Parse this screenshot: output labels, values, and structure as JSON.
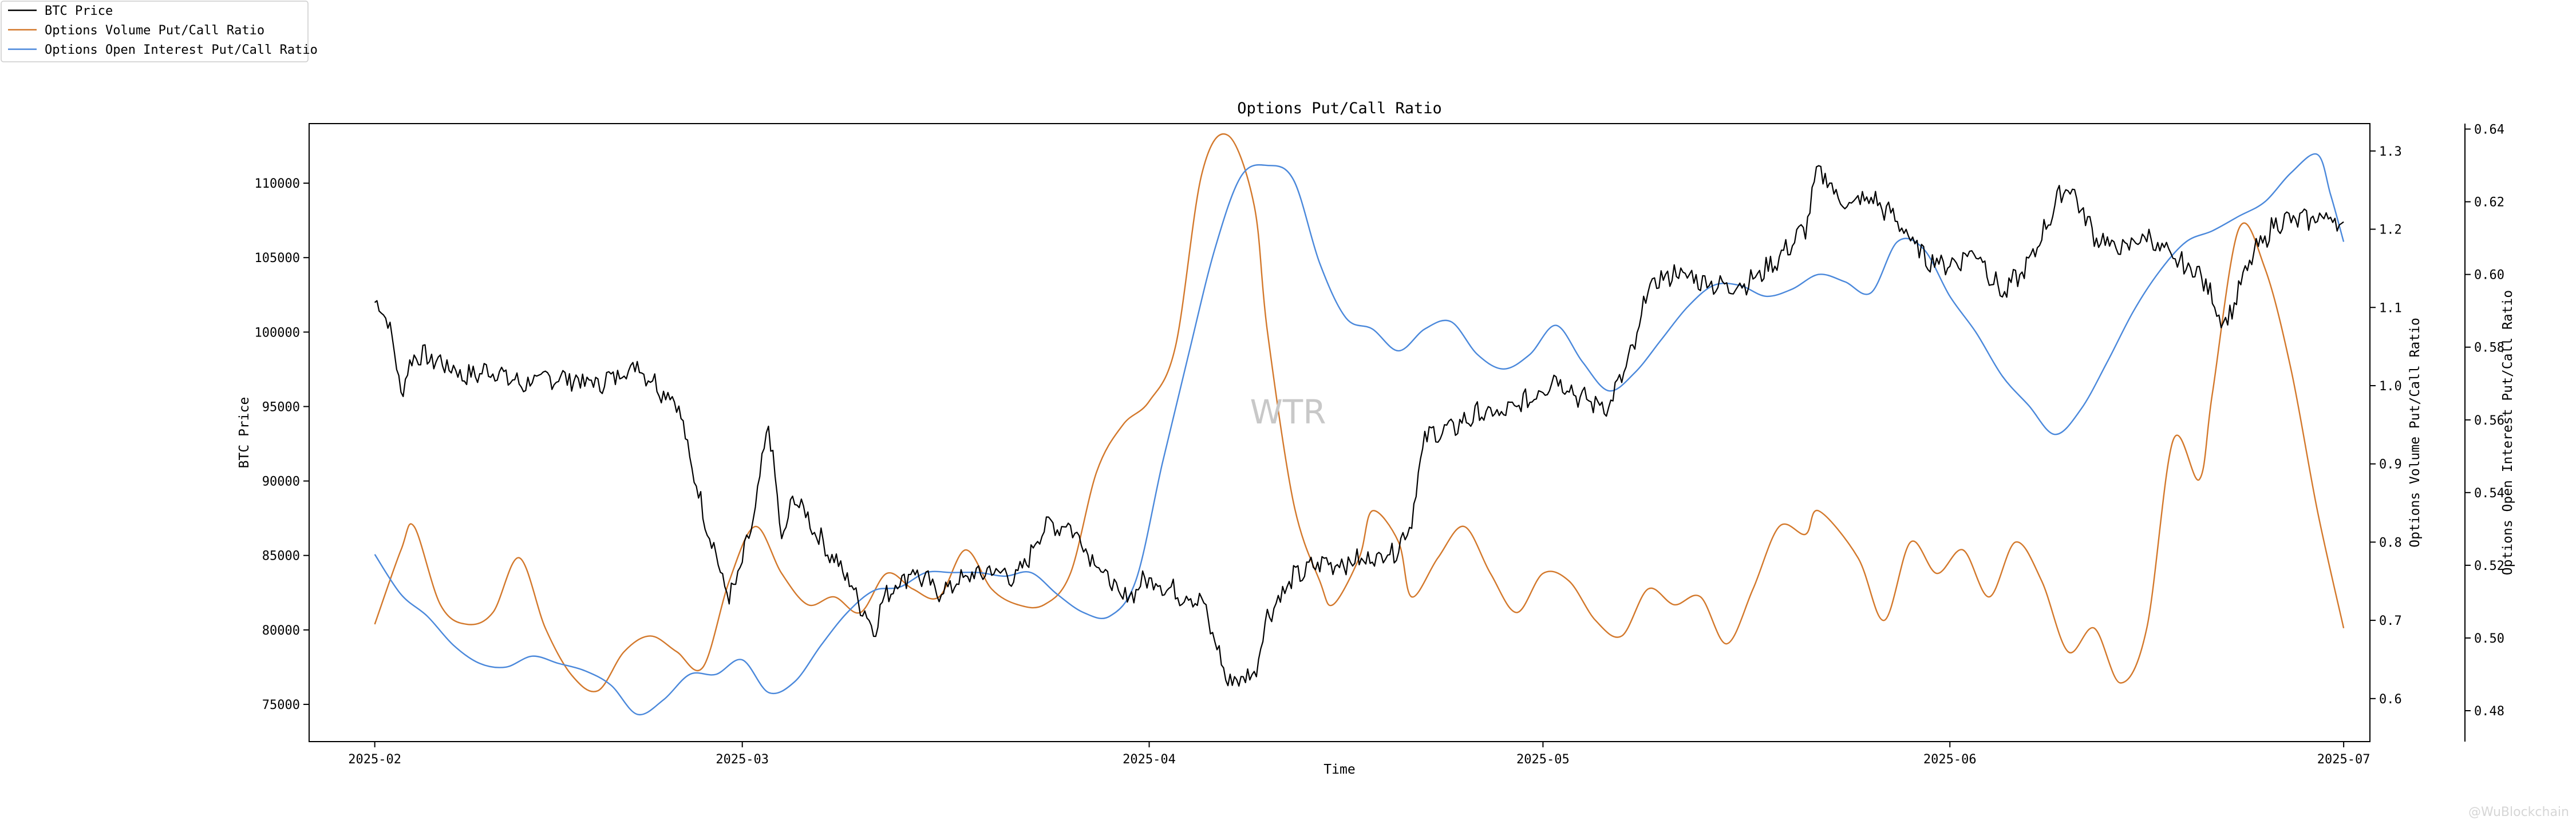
{
  "chart_data": {
    "type": "line",
    "title": "Options Put/Call Ratio",
    "xlabel": "Time",
    "x_ticks": [
      "2025-02",
      "2025-03",
      "2025-04",
      "2025-05",
      "2025-06",
      "2025-07"
    ],
    "xlim": [
      "2025-01-27",
      "2025-07-03"
    ],
    "axes": {
      "left": {
        "label": "BTC Price",
        "ylim": [
          72500,
          114000
        ],
        "ticks": [
          75000,
          80000,
          85000,
          90000,
          95000,
          100000,
          105000,
          110000
        ]
      },
      "right1": {
        "label": "Options Volume Put/Call Ratio",
        "ylim": [
          0.545,
          1.335
        ],
        "ticks": [
          "0.6",
          "0.7",
          "0.8",
          "0.9",
          "1.0",
          "1.1",
          "1.2",
          "1.3"
        ]
      },
      "right2": {
        "label": "Options Open Interest Put/Call Ratio",
        "ylim": [
          0.4715,
          0.6415
        ],
        "ticks": [
          "0.48",
          "0.50",
          "0.52",
          "0.54",
          "0.56",
          "0.58",
          "0.60",
          "0.62",
          "0.64"
        ]
      }
    },
    "legend_position": "top-left",
    "series": [
      {
        "name": "BTC Price",
        "axis": "left",
        "color": "#000000",
        "points": [
          [
            "2025-02-01",
            102000
          ],
          [
            "2025-02-02",
            101000
          ],
          [
            "2025-02-03",
            96000
          ],
          [
            "2025-02-04",
            98500
          ],
          [
            "2025-02-06",
            98000
          ],
          [
            "2025-02-08",
            97000
          ],
          [
            "2025-02-10",
            97500
          ],
          [
            "2025-02-12",
            96500
          ],
          [
            "2025-02-15",
            97000
          ],
          [
            "2025-02-18",
            96500
          ],
          [
            "2025-02-21",
            97800
          ],
          [
            "2025-02-23",
            96000
          ],
          [
            "2025-02-24",
            95500
          ],
          [
            "2025-02-25",
            91500
          ],
          [
            "2025-02-26",
            88000
          ],
          [
            "2025-02-28",
            82000
          ],
          [
            "2025-03-01",
            84500
          ],
          [
            "2025-03-02",
            88000
          ],
          [
            "2025-03-03",
            94000
          ],
          [
            "2025-03-04",
            86000
          ],
          [
            "2025-03-05",
            89000
          ],
          [
            "2025-03-07",
            86000
          ],
          [
            "2025-03-09",
            83500
          ],
          [
            "2025-03-11",
            80000
          ],
          [
            "2025-03-12",
            82500
          ],
          [
            "2025-03-14",
            84000
          ],
          [
            "2025-03-16",
            82500
          ],
          [
            "2025-03-18",
            83500
          ],
          [
            "2025-03-20",
            84000
          ],
          [
            "2025-03-22",
            83500
          ],
          [
            "2025-03-24",
            87000
          ],
          [
            "2025-03-26",
            87000
          ],
          [
            "2025-03-28",
            84500
          ],
          [
            "2025-03-30",
            82000
          ],
          [
            "2025-04-01",
            83500
          ],
          [
            "2025-04-03",
            82500
          ],
          [
            "2025-04-05",
            82000
          ],
          [
            "2025-04-07",
            76500
          ],
          [
            "2025-04-09",
            77000
          ],
          [
            "2025-04-10",
            81000
          ],
          [
            "2025-04-12",
            83500
          ],
          [
            "2025-04-14",
            84500
          ],
          [
            "2025-04-16",
            84500
          ],
          [
            "2025-04-18",
            84800
          ],
          [
            "2025-04-20",
            85500
          ],
          [
            "2025-04-21",
            87500
          ],
          [
            "2025-04-22",
            93000
          ],
          [
            "2025-04-24",
            93500
          ],
          [
            "2025-04-26",
            94500
          ],
          [
            "2025-04-28",
            94500
          ],
          [
            "2025-04-30",
            95500
          ],
          [
            "2025-05-02",
            97000
          ],
          [
            "2025-05-04",
            95500
          ],
          [
            "2025-05-06",
            95000
          ],
          [
            "2025-05-08",
            99000
          ],
          [
            "2025-05-09",
            103000
          ],
          [
            "2025-05-11",
            104000
          ],
          [
            "2025-05-13",
            103500
          ],
          [
            "2025-05-15",
            103000
          ],
          [
            "2025-05-17",
            103500
          ],
          [
            "2025-05-19",
            105000
          ],
          [
            "2025-05-21",
            107000
          ],
          [
            "2025-05-22",
            111000
          ],
          [
            "2025-05-24",
            108500
          ],
          [
            "2025-05-26",
            109000
          ],
          [
            "2025-05-28",
            107500
          ],
          [
            "2025-05-30",
            105000
          ],
          [
            "2025-06-01",
            104500
          ],
          [
            "2025-06-03",
            105500
          ],
          [
            "2025-06-05",
            102500
          ],
          [
            "2025-06-07",
            104500
          ],
          [
            "2025-06-09",
            108500
          ],
          [
            "2025-06-10",
            110000
          ],
          [
            "2025-06-12",
            106500
          ],
          [
            "2025-06-14",
            105500
          ],
          [
            "2025-06-16",
            106500
          ],
          [
            "2025-06-18",
            104800
          ],
          [
            "2025-06-20",
            104000
          ],
          [
            "2025-06-22",
            100500
          ],
          [
            "2025-06-24",
            105000
          ],
          [
            "2025-06-26",
            107500
          ],
          [
            "2025-06-28",
            107500
          ],
          [
            "2025-06-30",
            107800
          ],
          [
            "2025-07-01",
            107000
          ]
        ]
      },
      {
        "name": "Options Volume Put/Call Ratio",
        "axis": "right1",
        "color": "#d3782b",
        "points": [
          [
            "2025-02-01",
            0.695
          ],
          [
            "2025-02-03",
            0.79
          ],
          [
            "2025-02-04",
            0.82
          ],
          [
            "2025-02-06",
            0.72
          ],
          [
            "2025-02-08",
            0.695
          ],
          [
            "2025-02-10",
            0.71
          ],
          [
            "2025-02-12",
            0.78
          ],
          [
            "2025-02-14",
            0.69
          ],
          [
            "2025-02-16",
            0.63
          ],
          [
            "2025-02-18",
            0.61
          ],
          [
            "2025-02-20",
            0.66
          ],
          [
            "2025-02-22",
            0.68
          ],
          [
            "2025-02-24",
            0.66
          ],
          [
            "2025-02-26",
            0.64
          ],
          [
            "2025-02-28",
            0.75
          ],
          [
            "2025-03-02",
            0.82
          ],
          [
            "2025-03-04",
            0.76
          ],
          [
            "2025-03-06",
            0.72
          ],
          [
            "2025-03-08",
            0.73
          ],
          [
            "2025-03-10",
            0.71
          ],
          [
            "2025-03-12",
            0.76
          ],
          [
            "2025-03-14",
            0.74
          ],
          [
            "2025-03-16",
            0.73
          ],
          [
            "2025-03-18",
            0.79
          ],
          [
            "2025-03-20",
            0.74
          ],
          [
            "2025-03-22",
            0.72
          ],
          [
            "2025-03-24",
            0.72
          ],
          [
            "2025-03-26",
            0.76
          ],
          [
            "2025-03-28",
            0.89
          ],
          [
            "2025-03-30",
            0.95
          ],
          [
            "2025-04-01",
            0.98
          ],
          [
            "2025-04-03",
            1.05
          ],
          [
            "2025-04-05",
            1.27
          ],
          [
            "2025-04-07",
            1.32
          ],
          [
            "2025-04-09",
            1.23
          ],
          [
            "2025-04-10",
            1.07
          ],
          [
            "2025-04-12",
            0.85
          ],
          [
            "2025-04-14",
            0.75
          ],
          [
            "2025-04-15",
            0.72
          ],
          [
            "2025-04-17",
            0.78
          ],
          [
            "2025-04-18",
            0.84
          ],
          [
            "2025-04-20",
            0.8
          ],
          [
            "2025-04-21",
            0.73
          ],
          [
            "2025-04-23",
            0.78
          ],
          [
            "2025-04-25",
            0.82
          ],
          [
            "2025-04-27",
            0.76
          ],
          [
            "2025-04-29",
            0.71
          ],
          [
            "2025-05-01",
            0.76
          ],
          [
            "2025-05-03",
            0.75
          ],
          [
            "2025-05-05",
            0.7
          ],
          [
            "2025-05-07",
            0.68
          ],
          [
            "2025-05-09",
            0.74
          ],
          [
            "2025-05-11",
            0.72
          ],
          [
            "2025-05-13",
            0.73
          ],
          [
            "2025-05-15",
            0.67
          ],
          [
            "2025-05-17",
            0.74
          ],
          [
            "2025-05-19",
            0.82
          ],
          [
            "2025-05-21",
            0.81
          ],
          [
            "2025-05-22",
            0.84
          ],
          [
            "2025-05-25",
            0.78
          ],
          [
            "2025-05-27",
            0.7
          ],
          [
            "2025-05-29",
            0.8
          ],
          [
            "2025-05-31",
            0.76
          ],
          [
            "2025-06-02",
            0.79
          ],
          [
            "2025-06-04",
            0.73
          ],
          [
            "2025-06-06",
            0.8
          ],
          [
            "2025-06-08",
            0.75
          ],
          [
            "2025-06-10",
            0.66
          ],
          [
            "2025-06-12",
            0.69
          ],
          [
            "2025-06-14",
            0.62
          ],
          [
            "2025-06-16",
            0.69
          ],
          [
            "2025-06-18",
            0.93
          ],
          [
            "2025-06-20",
            0.88
          ],
          [
            "2025-06-21",
            0.99
          ],
          [
            "2025-06-23",
            1.2
          ],
          [
            "2025-06-25",
            1.15
          ],
          [
            "2025-06-27",
            1.02
          ],
          [
            "2025-06-29",
            0.84
          ],
          [
            "2025-07-01",
            0.69
          ]
        ]
      },
      {
        "name": "Options Open Interest Put/Call Ratio",
        "axis": "right2",
        "color": "#4a88db",
        "points": [
          [
            "2025-02-01",
            0.523
          ],
          [
            "2025-02-03",
            0.512
          ],
          [
            "2025-02-05",
            0.506
          ],
          [
            "2025-02-07",
            0.498
          ],
          [
            "2025-02-09",
            0.493
          ],
          [
            "2025-02-11",
            0.492
          ],
          [
            "2025-02-13",
            0.495
          ],
          [
            "2025-02-15",
            0.493
          ],
          [
            "2025-02-17",
            0.491
          ],
          [
            "2025-02-19",
            0.487
          ],
          [
            "2025-02-21",
            0.479
          ],
          [
            "2025-02-23",
            0.483
          ],
          [
            "2025-02-25",
            0.49
          ],
          [
            "2025-02-27",
            0.49
          ],
          [
            "2025-03-01",
            0.494
          ],
          [
            "2025-03-03",
            0.485
          ],
          [
            "2025-03-05",
            0.488
          ],
          [
            "2025-03-07",
            0.498
          ],
          [
            "2025-03-09",
            0.507
          ],
          [
            "2025-03-11",
            0.513
          ],
          [
            "2025-03-13",
            0.514
          ],
          [
            "2025-03-15",
            0.518
          ],
          [
            "2025-03-17",
            0.518
          ],
          [
            "2025-03-19",
            0.518
          ],
          [
            "2025-03-21",
            0.517
          ],
          [
            "2025-03-23",
            0.518
          ],
          [
            "2025-03-25",
            0.512
          ],
          [
            "2025-03-27",
            0.507
          ],
          [
            "2025-03-29",
            0.506
          ],
          [
            "2025-03-31",
            0.516
          ],
          [
            "2025-04-02",
            0.548
          ],
          [
            "2025-04-04",
            0.578
          ],
          [
            "2025-04-06",
            0.607
          ],
          [
            "2025-04-08",
            0.627
          ],
          [
            "2025-04-10",
            0.63
          ],
          [
            "2025-04-12",
            0.626
          ],
          [
            "2025-04-14",
            0.603
          ],
          [
            "2025-04-16",
            0.588
          ],
          [
            "2025-04-18",
            0.585
          ],
          [
            "2025-04-20",
            0.579
          ],
          [
            "2025-04-22",
            0.585
          ],
          [
            "2025-04-24",
            0.587
          ],
          [
            "2025-04-26",
            0.578
          ],
          [
            "2025-04-28",
            0.574
          ],
          [
            "2025-04-30",
            0.578
          ],
          [
            "2025-05-02",
            0.586
          ],
          [
            "2025-05-04",
            0.576
          ],
          [
            "2025-05-06",
            0.568
          ],
          [
            "2025-05-08",
            0.573
          ],
          [
            "2025-05-10",
            0.582
          ],
          [
            "2025-05-12",
            0.591
          ],
          [
            "2025-05-14",
            0.597
          ],
          [
            "2025-05-16",
            0.597
          ],
          [
            "2025-05-18",
            0.594
          ],
          [
            "2025-05-20",
            0.596
          ],
          [
            "2025-05-22",
            0.6
          ],
          [
            "2025-05-24",
            0.598
          ],
          [
            "2025-05-26",
            0.595
          ],
          [
            "2025-05-28",
            0.609
          ],
          [
            "2025-05-30",
            0.607
          ],
          [
            "2025-06-01",
            0.594
          ],
          [
            "2025-06-03",
            0.584
          ],
          [
            "2025-06-05",
            0.572
          ],
          [
            "2025-06-07",
            0.564
          ],
          [
            "2025-06-09",
            0.556
          ],
          [
            "2025-06-11",
            0.563
          ],
          [
            "2025-06-13",
            0.576
          ],
          [
            "2025-06-15",
            0.59
          ],
          [
            "2025-06-17",
            0.601
          ],
          [
            "2025-06-19",
            0.609
          ],
          [
            "2025-06-21",
            0.612
          ],
          [
            "2025-06-23",
            0.616
          ],
          [
            "2025-06-25",
            0.62
          ],
          [
            "2025-06-27",
            0.628
          ],
          [
            "2025-06-29",
            0.633
          ],
          [
            "2025-06-30",
            0.622
          ],
          [
            "2025-07-01",
            0.609
          ]
        ]
      }
    ],
    "watermark": "WTR",
    "credit": "@WuBlockchain"
  }
}
